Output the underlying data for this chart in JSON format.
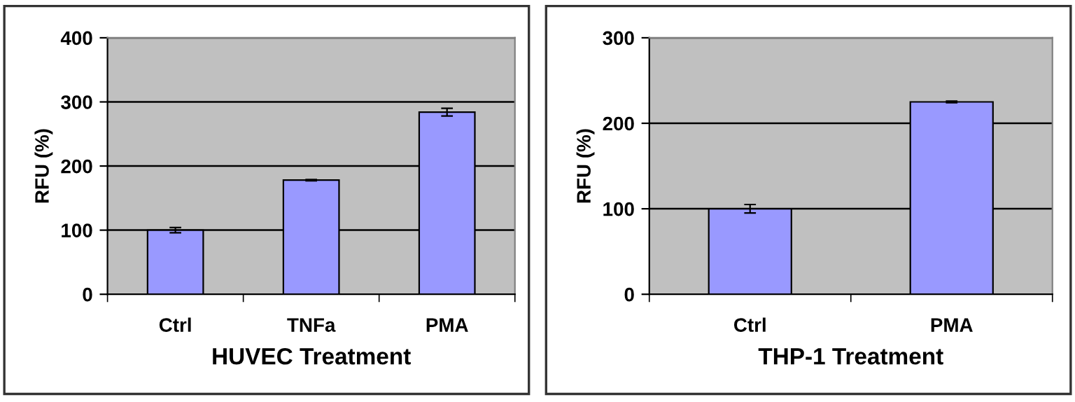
{
  "chart_data": [
    {
      "type": "bar",
      "xlabel": "HUVEC Treatment",
      "ylabel": "RFU (%)",
      "categories": [
        "Ctrl",
        "TNFa",
        "PMA"
      ],
      "values": [
        100,
        178,
        284
      ],
      "errors": [
        4,
        1,
        6
      ],
      "color": "#9999ff",
      "ylim": [
        0,
        400
      ],
      "yticks": [
        0,
        100,
        200,
        300,
        400
      ],
      "grid": "y",
      "legend": false
    },
    {
      "type": "bar",
      "xlabel": "THP-1 Treatment",
      "ylabel": "RFU (%)",
      "categories": [
        "Ctrl",
        "PMA"
      ],
      "values": [
        100,
        225
      ],
      "errors": [
        5,
        1
      ],
      "color": "#9999ff",
      "ylim": [
        0,
        300
      ],
      "yticks": [
        0,
        100,
        200,
        300
      ],
      "grid": "y",
      "legend": false
    }
  ]
}
